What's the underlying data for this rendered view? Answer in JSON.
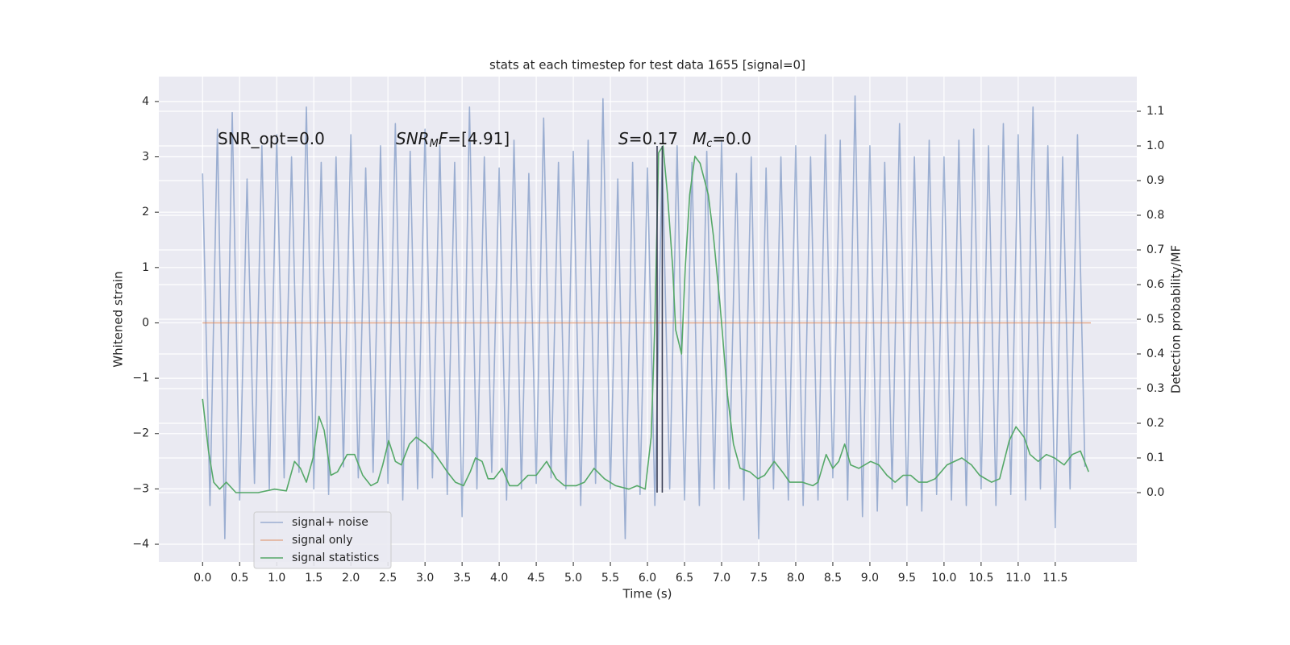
{
  "chart_data": {
    "type": "line",
    "title": "stats at each timestep for test data 1655 [signal=0]",
    "xlabel": "Time (s)",
    "ylabel": "Whitened strain",
    "y2label": "Detection probability/MF",
    "xlim": [
      -0.59,
      12.6
    ],
    "ylim": [
      -4.32,
      4.45
    ],
    "y2lim": [
      -0.2,
      1.2
    ],
    "xticks": [
      {
        "value": 0,
        "label": "0.0"
      },
      0.5,
      {
        "value": 1,
        "label": "1.0"
      },
      1.5,
      {
        "value": 2,
        "label": "2.0"
      },
      2.5,
      {
        "value": 3,
        "label": "3.0"
      },
      3.5,
      {
        "value": 4,
        "label": "4.0"
      },
      4.5,
      {
        "value": 5,
        "label": "5.0"
      },
      5.5,
      {
        "value": 6,
        "label": "6.0"
      },
      6.5,
      {
        "value": 7,
        "label": "7.0"
      },
      7.5,
      {
        "value": 8,
        "label": "8.0"
      },
      8.5,
      {
        "value": 9,
        "label": "9.0"
      },
      9.5,
      {
        "value": 10,
        "label": "10.0"
      },
      10.5,
      {
        "value": 11,
        "label": "11.0"
      },
      11.5
    ],
    "yticks": [
      {
        "value": -4,
        "label": "−4"
      },
      {
        "value": -3,
        "label": "−3"
      },
      {
        "value": -2,
        "label": "−2"
      },
      {
        "value": -1,
        "label": "−1"
      },
      0,
      1,
      2,
      3,
      4
    ],
    "y2ticks": [
      {
        "value": 0,
        "label": "0.0"
      },
      0.1,
      0.2,
      0.3,
      0.4,
      0.5,
      0.6,
      0.7,
      0.8,
      0.9,
      {
        "value": 1,
        "label": "1.0"
      },
      1.1
    ],
    "grid": true,
    "legend": "lower left",
    "series": [
      {
        "name": "signal+ noise",
        "color": "#4c72b0",
        "alpha": 0.5,
        "x": [
          0,
          0.1,
          0.2,
          0.3,
          0.4,
          0.5,
          0.6,
          0.7,
          0.8,
          0.9,
          1,
          1.1,
          1.2,
          1.3,
          1.4,
          1.5,
          1.6,
          1.7,
          1.8,
          1.9,
          2,
          2.1,
          2.2,
          2.3,
          2.4,
          2.5,
          2.6,
          2.7,
          2.8,
          2.9,
          3,
          3.1,
          3.2,
          3.3,
          3.4,
          3.5,
          3.6,
          3.7,
          3.8,
          3.9,
          4,
          4.1,
          4.2,
          4.3,
          4.4,
          4.5,
          4.6,
          4.7,
          4.8,
          4.9,
          5,
          5.1,
          5.2,
          5.3,
          5.4,
          5.5,
          5.6,
          5.7,
          5.8,
          5.9,
          6,
          6.1,
          6.2,
          6.3,
          6.4,
          6.5,
          6.6,
          6.7,
          6.8,
          6.9,
          7,
          7.1,
          7.2,
          7.3,
          7.4,
          7.5,
          7.6,
          7.7,
          7.8,
          7.9,
          8,
          8.1,
          8.2,
          8.3,
          8.4,
          8.5,
          8.6,
          8.7,
          8.8,
          8.9,
          9,
          9.1,
          9.2,
          9.3,
          9.4,
          9.5,
          9.6,
          9.7,
          9.8,
          9.9,
          10,
          10.1,
          10.2,
          10.3,
          10.4,
          10.5,
          10.6,
          10.7,
          10.8,
          10.9,
          11,
          11.1,
          11.2,
          11.3,
          11.4,
          11.5,
          11.6,
          11.7,
          11.8,
          11.9
        ],
        "values": [
          2.7,
          -3.3,
          3.5,
          -3.9,
          3.8,
          -3.2,
          2.6,
          -2.9,
          3.2,
          -3.0,
          3.4,
          -2.8,
          3.0,
          -2.7,
          3.9,
          -3.0,
          2.9,
          -3.1,
          3.0,
          -2.6,
          3.4,
          -2.8,
          2.8,
          -2.7,
          3.2,
          -2.9,
          3.6,
          -3.2,
          3.1,
          -3.0,
          3.5,
          -2.8,
          3.2,
          -3.1,
          2.9,
          -3.5,
          3.9,
          -3.0,
          3.0,
          -2.7,
          2.8,
          -3.2,
          3.3,
          -3.0,
          2.7,
          -2.9,
          3.7,
          -2.8,
          2.9,
          -3.0,
          3.1,
          -3.3,
          3.3,
          -2.9,
          4.05,
          -3.0,
          2.6,
          -3.9,
          2.9,
          -3.1,
          2.8,
          -3.3,
          3.0,
          -3.0,
          3.2,
          -3.2,
          2.9,
          -3.3,
          3.1,
          -3.0,
          3.3,
          -3.0,
          2.7,
          -3.2,
          3.0,
          -3.9,
          2.8,
          -3.0,
          3.0,
          -3.2,
          3.2,
          -3.3,
          3.0,
          -3.2,
          3.4,
          -2.8,
          3.3,
          -3.2,
          4.1,
          -3.5,
          3.2,
          -3.4,
          2.9,
          -3.0,
          3.6,
          -3.3,
          3.0,
          -3.4,
          3.3,
          -3.1,
          3.0,
          -3.2,
          3.3,
          -3.3,
          3.5,
          -3.0,
          3.2,
          -3.3,
          3.6,
          -3.1,
          3.4,
          -3.2,
          3.9,
          -3.0,
          3.2,
          -3.7,
          3.0,
          -3.0,
          3.4,
          -2.6
        ]
      },
      {
        "name": "signal only",
        "color": "#dd8452",
        "alpha": 0.6,
        "x": [
          0,
          11.98
        ],
        "values": [
          0,
          0
        ]
      },
      {
        "name": "signal statistics",
        "color": "#55a868",
        "alpha": 1,
        "axis": "y2",
        "x": [
          0,
          0.08,
          0.15,
          0.23,
          0.32,
          0.45,
          0.75,
          0.97,
          1.13,
          1.24,
          1.32,
          1.4,
          1.49,
          1.57,
          1.64,
          1.73,
          1.82,
          1.95,
          2.05,
          2.16,
          2.27,
          2.36,
          2.43,
          2.51,
          2.6,
          2.68,
          2.79,
          2.88,
          3.01,
          3.14,
          3.3,
          3.41,
          3.52,
          3.61,
          3.68,
          3.77,
          3.85,
          3.93,
          4.04,
          4.14,
          4.25,
          4.39,
          4.5,
          4.64,
          4.77,
          4.88,
          5.04,
          5.15,
          5.28,
          5.42,
          5.57,
          5.75,
          5.86,
          5.97,
          6.05,
          6.1,
          6.15,
          6.21,
          6.27,
          6.34,
          6.38,
          6.46,
          6.51,
          6.57,
          6.64,
          6.71,
          6.82,
          6.89,
          6.98,
          7.08,
          7.16,
          7.25,
          7.38,
          7.49,
          7.58,
          7.71,
          7.82,
          7.92,
          8.09,
          8.23,
          8.3,
          8.41,
          8.5,
          8.58,
          8.66,
          8.74,
          8.85,
          9.01,
          9.12,
          9.23,
          9.34,
          9.45,
          9.55,
          9.66,
          9.77,
          9.88,
          10.04,
          10.24,
          10.37,
          10.48,
          10.64,
          10.75,
          10.88,
          10.97,
          11.08,
          11.16,
          11.27,
          11.38,
          11.49,
          11.62,
          11.73,
          11.84,
          11.95
        ],
        "values": [
          0.27,
          0.12,
          0.03,
          0.01,
          0.03,
          0.0,
          0.0,
          0.01,
          0.005,
          0.09,
          0.07,
          0.03,
          0.1,
          0.22,
          0.18,
          0.05,
          0.06,
          0.11,
          0.11,
          0.05,
          0.02,
          0.03,
          0.08,
          0.15,
          0.09,
          0.08,
          0.14,
          0.16,
          0.14,
          0.11,
          0.06,
          0.03,
          0.02,
          0.06,
          0.1,
          0.09,
          0.04,
          0.04,
          0.07,
          0.02,
          0.02,
          0.05,
          0.05,
          0.09,
          0.04,
          0.02,
          0.02,
          0.03,
          0.07,
          0.04,
          0.02,
          0.01,
          0.02,
          0.01,
          0.16,
          0.49,
          0.98,
          1.0,
          0.86,
          0.65,
          0.47,
          0.4,
          0.65,
          0.86,
          0.97,
          0.95,
          0.86,
          0.74,
          0.54,
          0.28,
          0.14,
          0.07,
          0.06,
          0.04,
          0.05,
          0.09,
          0.06,
          0.03,
          0.03,
          0.02,
          0.03,
          0.11,
          0.07,
          0.09,
          0.14,
          0.08,
          0.07,
          0.09,
          0.08,
          0.05,
          0.03,
          0.05,
          0.05,
          0.03,
          0.03,
          0.04,
          0.08,
          0.1,
          0.08,
          0.05,
          0.03,
          0.04,
          0.15,
          0.19,
          0.16,
          0.11,
          0.09,
          0.11,
          0.1,
          0.08,
          0.11,
          0.12,
          0.06
        ]
      }
    ],
    "vlines": {
      "x": [
        6.13,
        6.2
      ],
      "ymin": 0,
      "ymax": 1,
      "axis": "y2",
      "color": "#3a3f55"
    },
    "annotations": [
      [
        {
          "text": "SNR_opt=0.0",
          "style": ""
        }
      ],
      [
        {
          "text": "SNR",
          "style": "italic"
        },
        {
          "text": "M",
          "style": "sub"
        },
        {
          "text": "F",
          "style": "italic"
        },
        {
          "text": "=[4.91]",
          "style": ""
        }
      ],
      [
        {
          "text": "S",
          "style": "italic"
        },
        {
          "text": "=0.17",
          "style": ""
        }
      ],
      [
        {
          "text": "M",
          "style": "italic"
        },
        {
          "text": "c",
          "style": "sub"
        },
        {
          "text": "=0.0",
          "style": ""
        }
      ]
    ]
  }
}
